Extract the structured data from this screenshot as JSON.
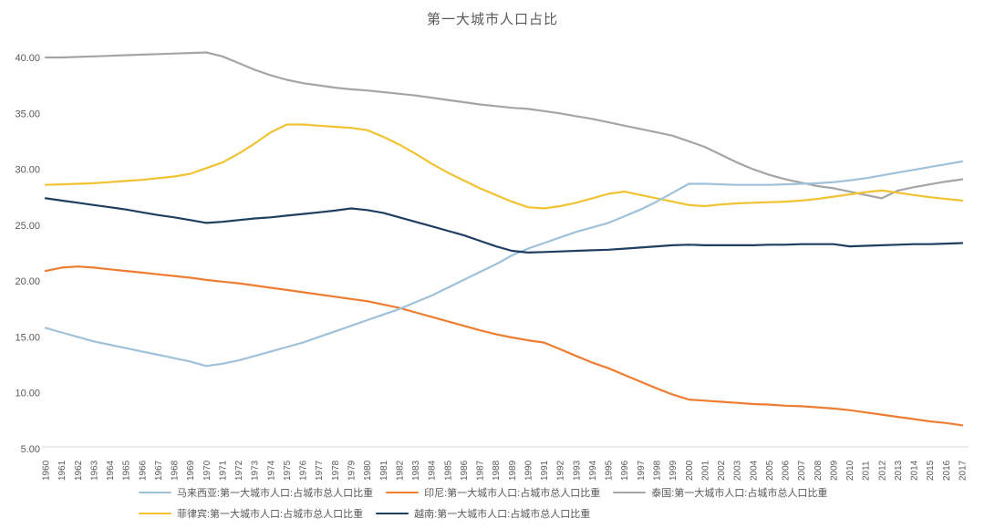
{
  "title": "第一大城市人口占比",
  "axis": {
    "text_color": "#595959",
    "line_color": "#d9d9d9",
    "y_tick_labels": [
      "40.00",
      "35.00",
      "30.00",
      "25.00",
      "20.00",
      "15.00",
      "10.00",
      "5.00"
    ],
    "y_tick_values": [
      40,
      35,
      30,
      25,
      20,
      15,
      10,
      5
    ]
  },
  "chart_data": {
    "type": "line",
    "title": "第一大城市人口占比",
    "xlabel": "",
    "ylabel": "",
    "ylim": [
      5,
      40
    ],
    "grid": false,
    "legend_position": "bottom",
    "x": [
      1960,
      1961,
      1962,
      1963,
      1964,
      1965,
      1966,
      1967,
      1968,
      1969,
      1970,
      1971,
      1972,
      1973,
      1974,
      1975,
      1976,
      1977,
      1978,
      1979,
      1980,
      1981,
      1982,
      1983,
      1984,
      1985,
      1986,
      1987,
      1988,
      1989,
      1990,
      1991,
      1992,
      1993,
      1994,
      1995,
      1996,
      1997,
      1998,
      1999,
      2000,
      2001,
      2002,
      2003,
      2004,
      2005,
      2006,
      2007,
      2008,
      2009,
      2010,
      2011,
      2012,
      2013,
      2014,
      2015,
      2016,
      2017
    ],
    "legend_rows": [
      [
        0,
        1,
        2
      ],
      [
        3,
        4
      ]
    ],
    "series": [
      {
        "id": "malaysia",
        "name": "马来西亚:第一大城市人口:占城市总人口比重",
        "color": "#9fc1da",
        "values": [
          15.8,
          15.4,
          15.0,
          14.6,
          14.3,
          14.0,
          13.7,
          13.4,
          13.1,
          12.8,
          12.4,
          12.6,
          12.9,
          13.3,
          13.7,
          14.1,
          14.5,
          15.0,
          15.5,
          16.0,
          16.5,
          17.0,
          17.5,
          18.1,
          18.7,
          19.4,
          20.1,
          20.8,
          21.5,
          22.3,
          22.9,
          23.4,
          23.9,
          24.4,
          24.8,
          25.2,
          25.8,
          26.4,
          27.1,
          27.9,
          28.7,
          28.7,
          28.65,
          28.6,
          28.6,
          28.6,
          28.65,
          28.7,
          28.75,
          28.85,
          29.0,
          29.2,
          29.45,
          29.7,
          29.95,
          30.2,
          30.45,
          30.7
        ]
      },
      {
        "id": "indonesia",
        "name": "印尼:第一大城市人口:占城市总人口比重",
        "color": "#ed7d31",
        "values": [
          20.9,
          21.2,
          21.3,
          21.2,
          21.05,
          20.9,
          20.75,
          20.6,
          20.45,
          20.3,
          20.1,
          19.95,
          19.8,
          19.6,
          19.4,
          19.2,
          19.0,
          18.8,
          18.6,
          18.4,
          18.2,
          17.9,
          17.6,
          17.2,
          16.8,
          16.4,
          16.0,
          15.6,
          15.25,
          14.95,
          14.7,
          14.5,
          13.9,
          13.3,
          12.7,
          12.2,
          11.6,
          11.0,
          10.4,
          9.85,
          9.4,
          9.3,
          9.2,
          9.1,
          9.0,
          8.95,
          8.85,
          8.8,
          8.7,
          8.6,
          8.45,
          8.25,
          8.05,
          7.85,
          7.65,
          7.45,
          7.3,
          7.1
        ]
      },
      {
        "id": "thailand",
        "name": "泰国:第一大城市人口:占城市总人口比重",
        "color": "#a5a5a5",
        "values": [
          40.0,
          40.0,
          40.05,
          40.1,
          40.15,
          40.2,
          40.25,
          40.3,
          40.35,
          40.4,
          40.45,
          40.1,
          39.5,
          38.9,
          38.4,
          38.0,
          37.7,
          37.5,
          37.3,
          37.15,
          37.05,
          36.9,
          36.75,
          36.6,
          36.4,
          36.2,
          36.0,
          35.8,
          35.65,
          35.5,
          35.4,
          35.2,
          35.0,
          34.75,
          34.5,
          34.2,
          33.9,
          33.6,
          33.3,
          33.0,
          32.5,
          32.0,
          31.3,
          30.6,
          30.0,
          29.5,
          29.1,
          28.8,
          28.5,
          28.3,
          28.0,
          27.7,
          27.4,
          28.1,
          28.4,
          28.65,
          28.9,
          29.1
        ]
      },
      {
        "id": "philippines",
        "name": "菲律宾:第一大城市人口:占城市总人口比重",
        "color": "#f1c232",
        "values": [
          28.6,
          28.65,
          28.7,
          28.75,
          28.85,
          28.95,
          29.05,
          29.2,
          29.35,
          29.6,
          30.1,
          30.6,
          31.4,
          32.3,
          33.3,
          34.0,
          34.0,
          33.9,
          33.8,
          33.7,
          33.5,
          32.9,
          32.2,
          31.4,
          30.5,
          29.7,
          29.0,
          28.3,
          27.7,
          27.1,
          26.6,
          26.5,
          26.7,
          27.0,
          27.4,
          27.8,
          28.0,
          27.7,
          27.4,
          27.1,
          26.8,
          26.7,
          26.85,
          26.95,
          27.0,
          27.05,
          27.1,
          27.2,
          27.35,
          27.55,
          27.75,
          27.95,
          28.1,
          27.9,
          27.7,
          27.5,
          27.35,
          27.2
        ]
      },
      {
        "id": "vietnam",
        "name": "越南:第一大城市人口:占城市总人口比重",
        "color": "#1f3f60",
        "values": [
          27.4,
          27.2,
          27.0,
          26.8,
          26.6,
          26.4,
          26.15,
          25.9,
          25.7,
          25.45,
          25.2,
          25.3,
          25.45,
          25.6,
          25.7,
          25.85,
          26.0,
          26.15,
          26.3,
          26.5,
          26.35,
          26.1,
          25.7,
          25.3,
          24.9,
          24.5,
          24.1,
          23.6,
          23.1,
          22.7,
          22.55,
          22.6,
          22.65,
          22.7,
          22.75,
          22.8,
          22.9,
          23.0,
          23.1,
          23.2,
          23.25,
          23.2,
          23.2,
          23.2,
          23.2,
          23.25,
          23.25,
          23.3,
          23.3,
          23.3,
          23.1,
          23.15,
          23.2,
          23.25,
          23.3,
          23.3,
          23.35,
          23.4
        ]
      }
    ]
  }
}
